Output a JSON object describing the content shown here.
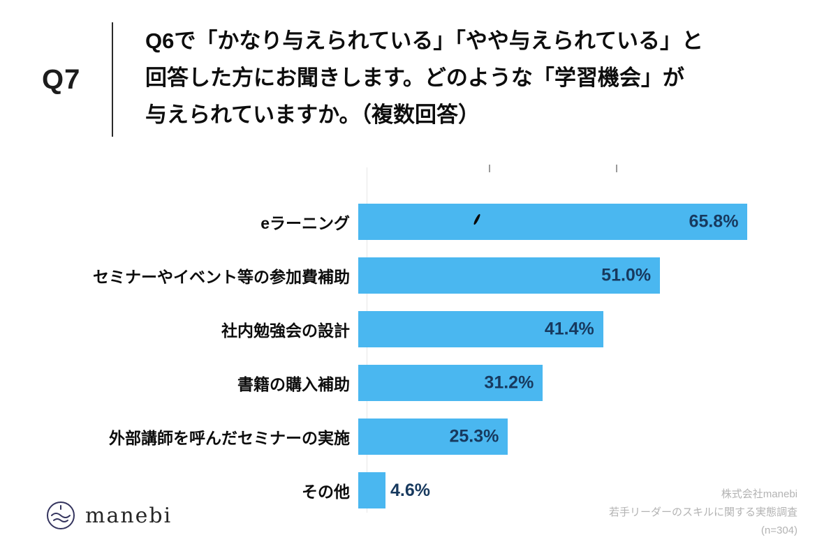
{
  "header": {
    "question_number": "Q7",
    "question_lines": [
      "Q6で「かなり与えられている」「やや与えられている」と",
      "回答した方にお聞きします。どのような「学習機会」が",
      "与えられていますか。（複数回答）"
    ]
  },
  "chart_data": {
    "type": "bar",
    "orientation": "horizontal",
    "title": "",
    "categories": [
      "eラーニング",
      "セミナーやイベント等の参加費補助",
      "社内勉強会の設計",
      "書籍の購入補助",
      "外部講師を呼んだセミナーの実施",
      "その他"
    ],
    "values": [
      65.8,
      51.0,
      41.4,
      31.2,
      25.3,
      4.6
    ],
    "value_labels": [
      "65.8%",
      "51.0%",
      "41.4%",
      "31.2%",
      "25.3%",
      "4.6%"
    ],
    "xlim": [
      0,
      74.6
    ],
    "grid": false,
    "legend": "none",
    "bar_color": "#4ab7f0",
    "value_label_color": "#17395e",
    "label_inside_threshold": 10
  },
  "footer": {
    "brand": "manebi",
    "source_lines": [
      "株式会社manebi",
      "若手リーダーのスキルに関する実態調査",
      "(n=304)"
    ]
  }
}
